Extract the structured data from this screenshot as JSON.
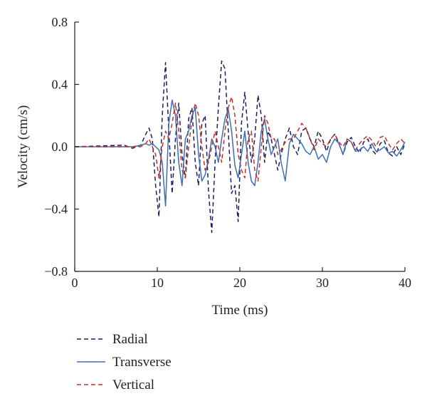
{
  "chart_data": {
    "type": "line",
    "xlabel": "Time (ms)",
    "ylabel": "Velocity (cm/s)",
    "xlim": [
      0,
      40
    ],
    "ylim": [
      -0.8,
      0.8
    ],
    "x_ticks": [
      "0",
      "10",
      "20",
      "30",
      "40"
    ],
    "y_ticks": [
      "0.8",
      "0.4",
      "0.0",
      "−0.4",
      "−0.8"
    ],
    "grid": false,
    "legend_position": "bottom-left",
    "series": [
      {
        "name": "Radial",
        "style": "dashed",
        "color": "#1b1f5c",
        "x": [
          0,
          6,
          7,
          8,
          8.6,
          9.0,
          9.4,
          9.8,
          10.2,
          10.6,
          11.0,
          11.4,
          11.8,
          12.2,
          12.6,
          13.0,
          13.4,
          13.8,
          14.2,
          14.6,
          15.0,
          15.4,
          15.8,
          16.2,
          16.6,
          17.0,
          17.4,
          17.8,
          18.2,
          18.6,
          19.0,
          19.4,
          19.8,
          20.2,
          20.6,
          21.0,
          21.4,
          21.8,
          22.2,
          22.6,
          23.0,
          23.4,
          23.8,
          24.2,
          24.6,
          25.0,
          25.5,
          26.0,
          26.5,
          27.0,
          27.5,
          28.0,
          28.5,
          29.0,
          29.5,
          30.0,
          30.5,
          31.0,
          31.5,
          32.0,
          32.5,
          33.0,
          33.5,
          34.0,
          34.5,
          35.0,
          35.5,
          36.0,
          36.5,
          37.0,
          37.5,
          38.0,
          38.5,
          39.0,
          39.5,
          40.0
        ],
        "y": [
          0,
          0.01,
          -0.01,
          0.01,
          0.08,
          0.12,
          0.05,
          -0.25,
          -0.45,
          0.2,
          0.54,
          0.1,
          -0.3,
          0.05,
          0.28,
          -0.05,
          -0.2,
          0.18,
          0.25,
          -0.1,
          -0.25,
          0.15,
          0.2,
          -0.28,
          -0.55,
          -0.1,
          0.25,
          0.55,
          0.5,
          0.1,
          -0.3,
          -0.25,
          -0.48,
          0.15,
          0.35,
          0.1,
          -0.1,
          0.05,
          0.33,
          0.2,
          -0.1,
          0.1,
          0.05,
          -0.05,
          -0.15,
          -0.05,
          0.05,
          0.12,
          0.0,
          -0.05,
          0.1,
          0.12,
          0.05,
          0.0,
          0.1,
          0.05,
          -0.03,
          0.05,
          0.08,
          0.02,
          -0.05,
          0.03,
          0.06,
          0.0,
          -0.04,
          0.03,
          0.05,
          -0.02,
          -0.05,
          0.02,
          0.04,
          -0.04,
          -0.06,
          0.0,
          -0.05,
          0.02
        ]
      },
      {
        "name": "Transverse",
        "style": "solid",
        "color": "#3a6fb8",
        "x": [
          0,
          7,
          8,
          8.6,
          9.0,
          9.4,
          9.8,
          10.2,
          10.6,
          11.0,
          11.4,
          11.8,
          12.2,
          12.6,
          13.0,
          13.4,
          13.8,
          14.2,
          14.6,
          15.0,
          15.4,
          15.8,
          16.2,
          16.6,
          17.0,
          17.4,
          17.8,
          18.2,
          18.6,
          19.0,
          19.4,
          19.8,
          20.2,
          20.6,
          21.0,
          21.4,
          21.8,
          22.2,
          22.6,
          23.0,
          23.4,
          23.8,
          24.2,
          24.6,
          25.0,
          25.5,
          26.0,
          26.5,
          27.0,
          27.5,
          28.0,
          28.5,
          29.0,
          29.5,
          30.0,
          30.5,
          31.0,
          31.5,
          32.0,
          32.5,
          33.0,
          33.5,
          34.0,
          34.5,
          35.0,
          35.5,
          36.0,
          36.5,
          37.0,
          37.5,
          38.0,
          38.5,
          39.0,
          39.5,
          40.0
        ],
        "y": [
          0,
          0.0,
          0.01,
          0.02,
          0.01,
          0.02,
          0.0,
          -0.02,
          -0.1,
          -0.38,
          0.15,
          0.3,
          0.2,
          -0.1,
          -0.25,
          0.05,
          0.1,
          0.2,
          0.25,
          -0.05,
          -0.22,
          -0.18,
          -0.08,
          0.05,
          0.0,
          -0.1,
          0.05,
          0.18,
          0.24,
          0.1,
          -0.12,
          -0.2,
          -0.05,
          0.1,
          -0.1,
          -0.22,
          -0.25,
          -0.1,
          0.1,
          0.18,
          0.05,
          -0.05,
          0.0,
          0.05,
          -0.1,
          -0.22,
          0.02,
          0.08,
          0.05,
          0.02,
          -0.03,
          -0.05,
          0.0,
          -0.08,
          -0.05,
          -0.1,
          0.0,
          0.05,
          0.02,
          -0.05,
          0.05,
          0.03,
          -0.03,
          -0.02,
          0.0,
          -0.03,
          0.02,
          -0.03,
          -0.02,
          0.0,
          -0.04,
          -0.03,
          -0.06,
          -0.02,
          0.03
        ]
      },
      {
        "name": "Vertical",
        "style": "dashed",
        "color": "#c4302b",
        "x": [
          0,
          7,
          8,
          8.6,
          9.0,
          9.4,
          9.8,
          10.2,
          10.6,
          11.0,
          11.4,
          11.8,
          12.2,
          12.6,
          13.0,
          13.4,
          13.8,
          14.2,
          14.6,
          15.0,
          15.4,
          15.8,
          16.2,
          16.6,
          17.0,
          17.4,
          17.8,
          18.2,
          18.6,
          19.0,
          19.4,
          19.8,
          20.2,
          20.6,
          21.0,
          21.4,
          21.8,
          22.2,
          22.6,
          23.0,
          23.4,
          23.8,
          24.2,
          24.6,
          25.0,
          25.5,
          26.0,
          26.5,
          27.0,
          27.5,
          28.0,
          28.5,
          29.0,
          29.5,
          30.0,
          30.5,
          31.0,
          31.5,
          32.0,
          32.5,
          33.0,
          33.5,
          34.0,
          34.5,
          35.0,
          35.5,
          36.0,
          36.5,
          37.0,
          37.5,
          38.0,
          38.5,
          39.0,
          39.5,
          40.0
        ],
        "y": [
          0,
          0.0,
          0.0,
          0.02,
          0.05,
          0.0,
          -0.05,
          -0.2,
          0.0,
          0.1,
          0.05,
          0.15,
          0.28,
          0.1,
          -0.15,
          -0.2,
          0.0,
          0.18,
          0.28,
          0.2,
          0.0,
          -0.15,
          -0.1,
          0.0,
          0.1,
          0.0,
          -0.1,
          0.1,
          0.25,
          0.32,
          0.2,
          -0.05,
          -0.15,
          -0.2,
          0.05,
          0.1,
          -0.15,
          -0.22,
          0.0,
          0.2,
          0.15,
          0.05,
          0.05,
          -0.05,
          -0.02,
          0.03,
          0.05,
          0.05,
          0.1,
          0.15,
          0.12,
          0.05,
          -0.02,
          0.05,
          0.02,
          0.0,
          0.05,
          0.08,
          0.03,
          0.0,
          0.05,
          0.03,
          -0.02,
          0.02,
          0.05,
          0.07,
          0.04,
          0.0,
          0.06,
          0.07,
          0.02,
          -0.02,
          0.02,
          0.05,
          0.02
        ]
      }
    ]
  }
}
